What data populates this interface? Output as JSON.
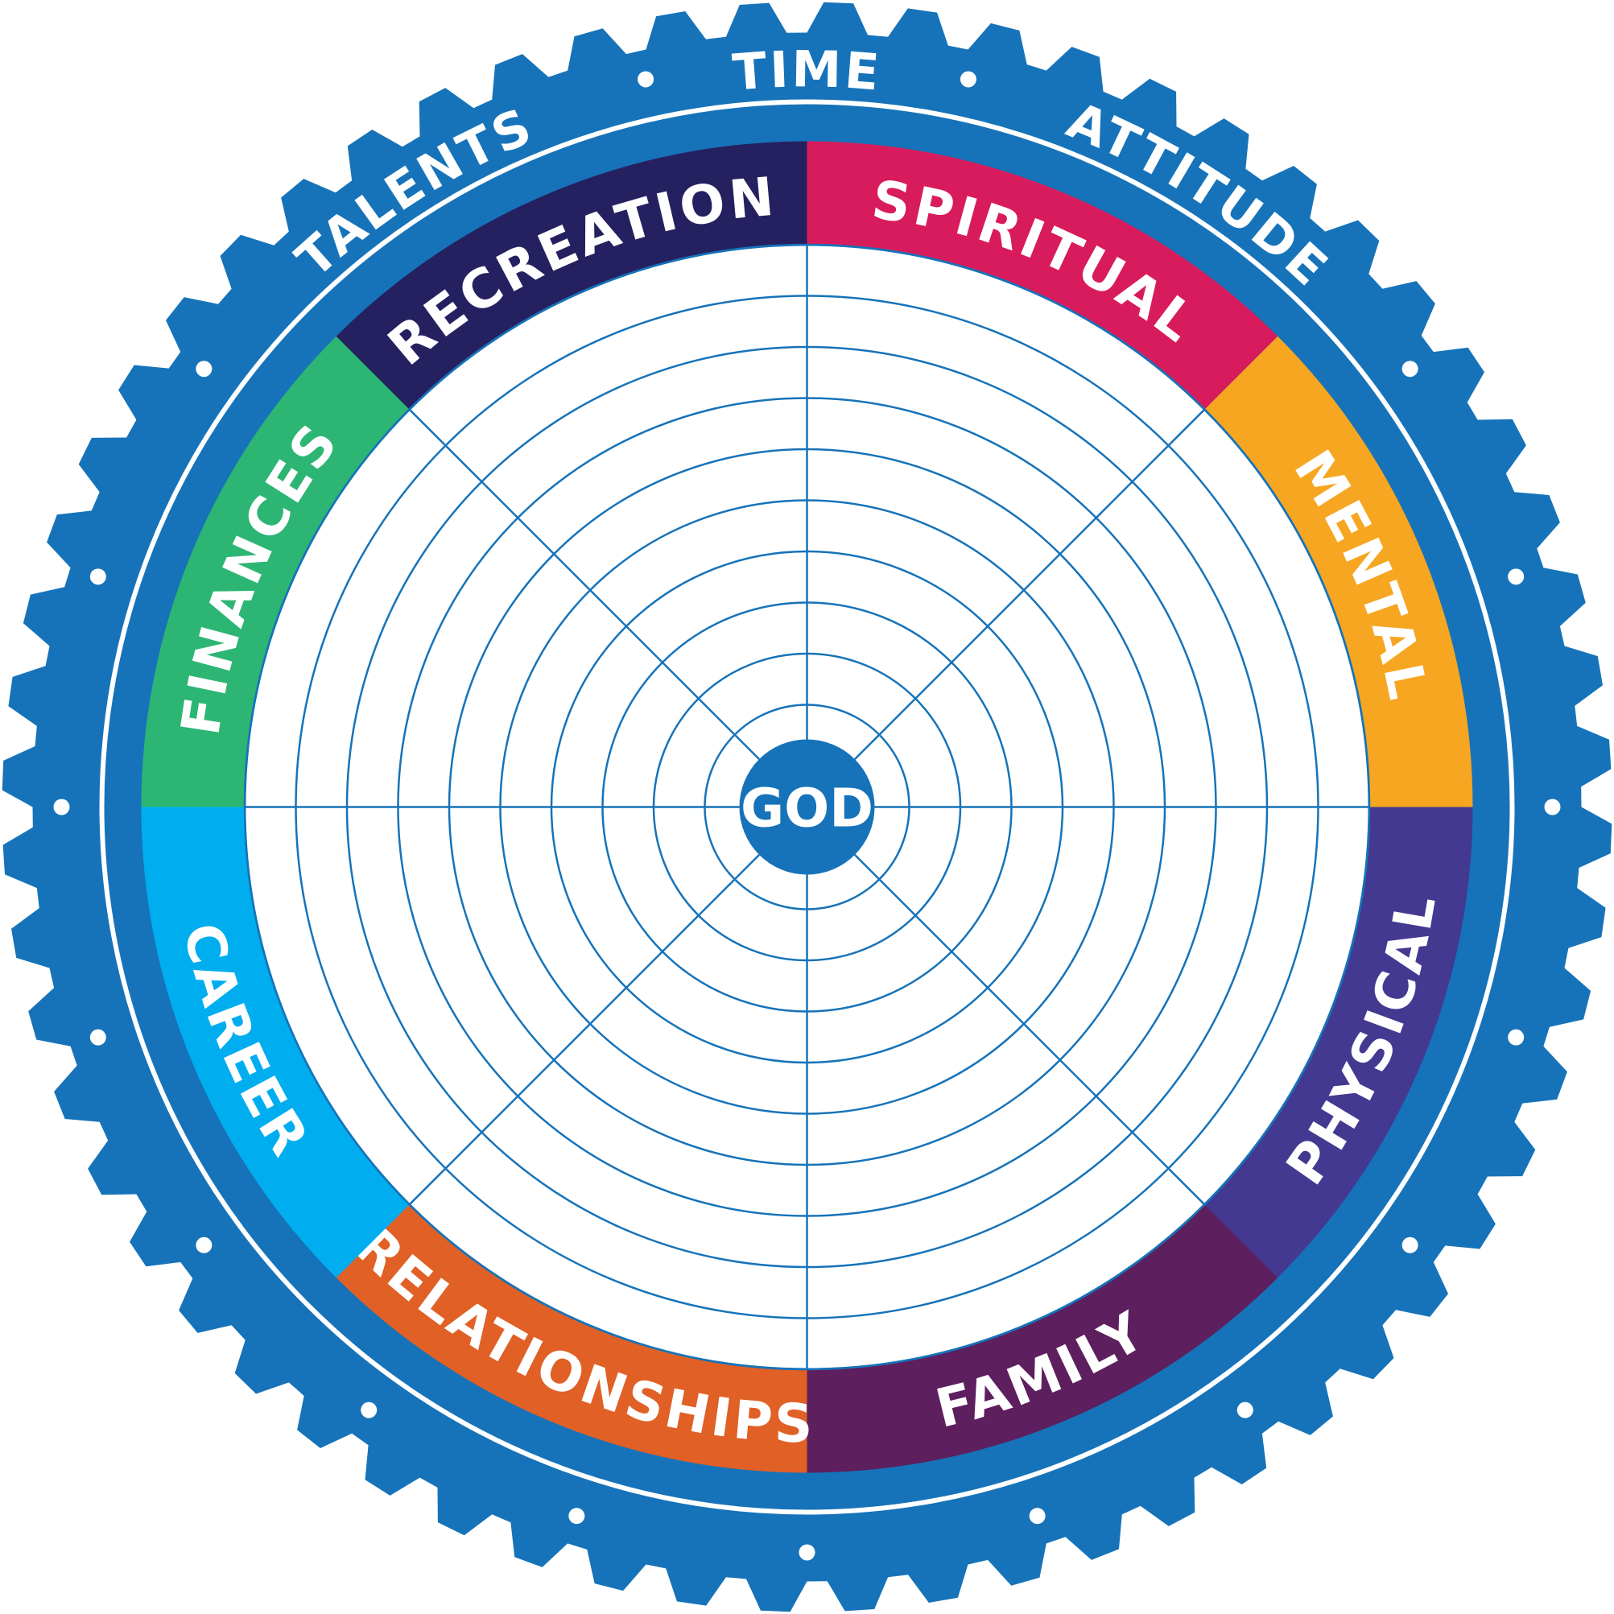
{
  "center": {
    "label": "GOD"
  },
  "outer_labels": [
    "TIME",
    "TALENTS",
    "ATTITUDE"
  ],
  "segments": [
    "SPIRITUAL",
    "MENTAL",
    "PHYSICAL",
    "FAMILY",
    "RELATIONSHIPS",
    "CAREER",
    "FINANCES",
    "RECREATION"
  ]
}
